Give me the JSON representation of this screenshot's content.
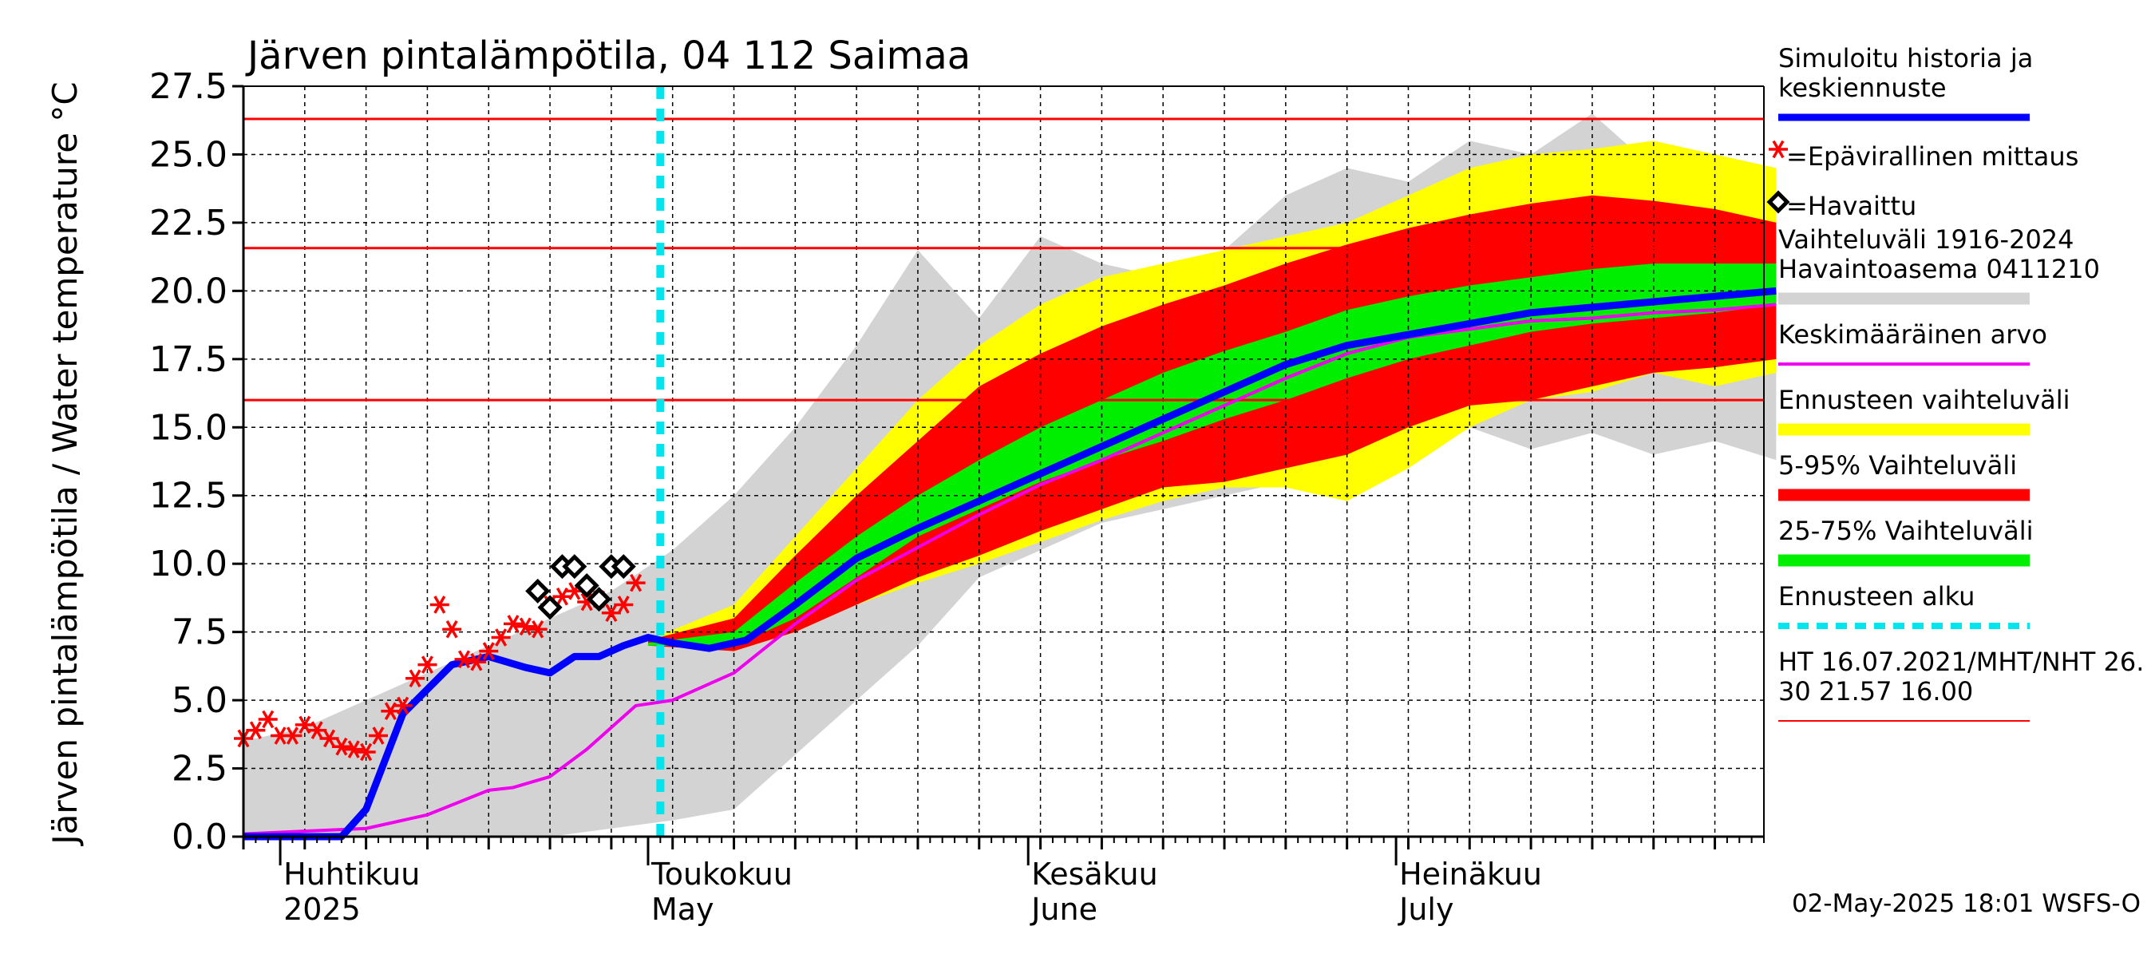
{
  "chart_data": {
    "type": "area",
    "title": "Järven pintalämpötila, 04 112 Saimaa",
    "ylabel": "Järven pintalämpötila / Water temperature °C",
    "ylim": [
      0,
      27.5
    ],
    "yticks": [
      "0.0",
      "2.5",
      "5.0",
      "7.5",
      "10.0",
      "12.5",
      "15.0",
      "17.5",
      "20.0",
      "22.5",
      "25.0",
      "27.5"
    ],
    "xlim": [
      "2025-03-29",
      "2025-07-31"
    ],
    "x_ticks_minor_days": 5,
    "month_labels": [
      {
        "fi": "Huhtikuu",
        "en": "2025",
        "date": "2025-04-01"
      },
      {
        "fi": "Toukokuu",
        "en": "May",
        "date": "2025-05-01"
      },
      {
        "fi": "Kesäkuu",
        "en": "June",
        "date": "2025-06-01"
      },
      {
        "fi": "Heinäkuu",
        "en": "July",
        "date": "2025-07-01"
      }
    ],
    "grid": true,
    "legend_position": "right",
    "reference_lines": {
      "values": [
        26.3,
        21.57,
        16.0
      ],
      "color": "#ff0000"
    },
    "forecast_start": "2025-05-02",
    "history_range": {
      "name": "Vaihteluväli 1916-2024 Havaintoasema 0411210",
      "color": "#d3d3d3",
      "days": [
        0,
        5,
        10,
        15,
        20,
        25,
        30,
        35,
        40,
        45,
        50,
        55,
        60,
        65,
        70,
        75,
        80,
        85,
        90,
        95,
        100,
        105,
        110,
        115,
        120,
        125
      ],
      "lower": [
        0.0,
        0.0,
        0.0,
        0.0,
        0.0,
        0.0,
        0.3,
        0.6,
        1.0,
        3.0,
        5.0,
        7.0,
        9.5,
        10.5,
        11.5,
        12.0,
        12.5,
        13.0,
        14.0,
        14.5,
        15.0,
        14.2,
        14.8,
        14.0,
        14.5,
        13.8
      ],
      "upper": [
        3.5,
        4.0,
        5.0,
        6.0,
        7.0,
        8.0,
        9.0,
        10.5,
        12.5,
        15.0,
        18.0,
        21.5,
        19.0,
        22.0,
        21.0,
        20.5,
        21.5,
        23.5,
        24.5,
        24.0,
        25.5,
        25.0,
        26.5,
        24.5,
        25.0,
        24.5
      ]
    },
    "forecast_ranges": [
      {
        "name": "Ennusteen vaihteluväli",
        "color": "#ffff00",
        "days": [
          33,
          40,
          45,
          50,
          55,
          60,
          65,
          70,
          75,
          80,
          85,
          90,
          95,
          100,
          105,
          110,
          115,
          120,
          125
        ],
        "lower": [
          7.0,
          6.8,
          7.5,
          8.5,
          9.3,
          10.0,
          10.8,
          11.6,
          12.3,
          12.8,
          12.8,
          12.3,
          13.5,
          15.0,
          16.0,
          16.3,
          17.0,
          16.5,
          17.0
        ],
        "upper": [
          7.2,
          8.5,
          11.0,
          13.5,
          16.0,
          18.0,
          19.5,
          20.5,
          21.0,
          21.5,
          22.0,
          22.5,
          23.5,
          24.5,
          25.0,
          25.2,
          25.5,
          25.0,
          24.5
        ]
      },
      {
        "name": "5-95% Vaihteluväli",
        "color": "#ff0000",
        "days": [
          33,
          40,
          45,
          50,
          55,
          60,
          65,
          70,
          75,
          80,
          85,
          90,
          95,
          100,
          105,
          110,
          115,
          120,
          125
        ],
        "lower": [
          7.0,
          6.8,
          7.5,
          8.5,
          9.5,
          10.3,
          11.2,
          12.0,
          12.8,
          13.0,
          13.5,
          14.0,
          15.0,
          15.8,
          16.0,
          16.5,
          17.0,
          17.2,
          17.5
        ],
        "upper": [
          7.2,
          8.0,
          10.3,
          12.5,
          14.5,
          16.5,
          17.7,
          18.7,
          19.5,
          20.2,
          21.0,
          21.7,
          22.3,
          22.8,
          23.2,
          23.5,
          23.3,
          23.0,
          22.5
        ]
      },
      {
        "name": "25-75% Vaihteluväli",
        "color": "#00ee00",
        "days": [
          33,
          40,
          45,
          50,
          55,
          60,
          65,
          70,
          75,
          80,
          85,
          90,
          95,
          100,
          105,
          110,
          115,
          120,
          125
        ],
        "lower": [
          7.0,
          7.0,
          8.0,
          9.5,
          11.0,
          12.0,
          13.0,
          13.8,
          14.5,
          15.3,
          16.0,
          16.8,
          17.5,
          18.0,
          18.5,
          18.8,
          19.0,
          19.2,
          19.5
        ],
        "upper": [
          7.1,
          7.5,
          9.3,
          11.0,
          12.5,
          13.8,
          15.0,
          16.0,
          17.0,
          17.8,
          18.5,
          19.3,
          19.8,
          20.2,
          20.5,
          20.8,
          21.0,
          21.0,
          21.0
        ]
      }
    ],
    "series": [
      {
        "name": "Simuloitu historia ja keskiennuste",
        "color": "#0000ff",
        "days": [
          0,
          5,
          8,
          10,
          13,
          17,
          20,
          23,
          25,
          27,
          29,
          31,
          33,
          35,
          38,
          41,
          45,
          50,
          55,
          60,
          65,
          70,
          75,
          80,
          85,
          90,
          95,
          100,
          105,
          110,
          115,
          120,
          125
        ],
        "values": [
          0.0,
          0.0,
          0.0,
          1.0,
          4.5,
          6.3,
          6.6,
          6.2,
          6.0,
          6.6,
          6.6,
          7.0,
          7.3,
          7.1,
          6.9,
          7.2,
          8.5,
          10.2,
          11.3,
          12.3,
          13.3,
          14.3,
          15.3,
          16.3,
          17.3,
          18.0,
          18.4,
          18.8,
          19.2,
          19.4,
          19.6,
          19.8,
          20.0
        ]
      },
      {
        "name": "Keskimääräinen arvo",
        "color": "#ee00ee",
        "days": [
          0,
          5,
          10,
          15,
          20,
          22,
          25,
          28,
          30,
          32,
          35,
          40,
          45,
          50,
          55,
          60,
          65,
          70,
          75,
          80,
          85,
          90,
          95,
          100,
          105,
          110,
          115,
          120,
          125
        ],
        "values": [
          0.1,
          0.2,
          0.3,
          0.8,
          1.7,
          1.8,
          2.2,
          3.2,
          4.0,
          4.8,
          5.0,
          6.0,
          7.8,
          9.4,
          10.6,
          11.8,
          12.9,
          13.8,
          14.8,
          15.8,
          16.8,
          17.7,
          18.3,
          18.6,
          18.9,
          19.0,
          19.2,
          19.3,
          19.5
        ]
      }
    ],
    "unofficial_measurements": {
      "name": "=Epävirallinen mittaus",
      "color": "#ff0000",
      "days": [
        0,
        1,
        2,
        3,
        4,
        5,
        6,
        7,
        8,
        9,
        10,
        11,
        12,
        13,
        14,
        15,
        16,
        17,
        18,
        19,
        20,
        21,
        22,
        23,
        24,
        25,
        26,
        27,
        28,
        29,
        30,
        31,
        32
      ],
      "values": [
        3.6,
        3.9,
        4.3,
        3.7,
        3.7,
        4.1,
        3.9,
        3.6,
        3.3,
        3.2,
        3.1,
        3.7,
        4.6,
        4.8,
        5.8,
        6.3,
        8.5,
        7.6,
        6.5,
        6.4,
        6.8,
        7.3,
        7.8,
        7.7,
        7.6,
        8.5,
        8.8,
        9.0,
        8.6,
        8.7,
        8.2,
        8.5,
        9.3
      ]
    },
    "observations": {
      "name": "=Havaittu",
      "color": "#000000",
      "days": [
        24,
        25,
        26,
        27,
        28,
        29,
        30,
        31
      ],
      "values": [
        9.0,
        8.4,
        9.9,
        9.9,
        9.2,
        8.7,
        9.9,
        9.9
      ]
    },
    "legend": [
      {
        "label": "Simuloitu historia ja\nkeskiennuste",
        "kind": "line",
        "color": "#0000ff"
      },
      {
        "label": "=Epävirallinen mittaus",
        "kind": "star",
        "color": "#ff0000"
      },
      {
        "label": "=Havaittu",
        "kind": "diamond",
        "color": "#000000"
      },
      {
        "label": "Vaihteluväli 1916-2024\n Havaintoasema 0411210",
        "kind": "band",
        "color": "#d3d3d3"
      },
      {
        "label": "Keskimääräinen arvo",
        "kind": "line",
        "color": "#ee00ee"
      },
      {
        "label": "Ennusteen vaihteluväli",
        "kind": "band",
        "color": "#ffff00"
      },
      {
        "label": "5-95% Vaihteluväli",
        "kind": "band",
        "color": "#ff0000"
      },
      {
        "label": "25-75% Vaihteluväli",
        "kind": "band",
        "color": "#00ee00"
      },
      {
        "label": "Ennusteen alku",
        "kind": "dash",
        "color": "#00e5ee"
      },
      {
        "label": "HT 16.07.2021/MHT/NHT 26.\n30 21.57 16.00",
        "kind": "thin",
        "color": "#ff0000"
      }
    ],
    "footer": "02-May-2025 18:01 WSFS-O"
  }
}
